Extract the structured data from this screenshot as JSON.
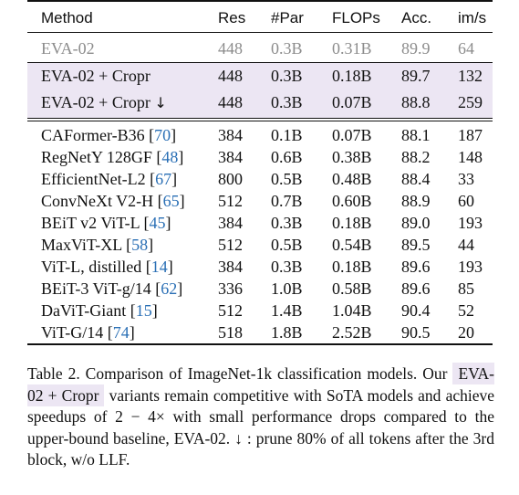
{
  "table": {
    "headers": {
      "method": "Method",
      "res": "Res",
      "par": "#Par",
      "flops": "FLOPs",
      "acc": "Acc.",
      "ims": "im/s"
    },
    "baseline": {
      "method": "EVA-02",
      "res": "448",
      "par": "0.3B",
      "flops": "0.31B",
      "acc": "89.9",
      "ims": "64"
    },
    "ours": [
      {
        "method": "EVA-02 + Cropr",
        "arrow": "",
        "res": "448",
        "par": "0.3B",
        "flops": "0.18B",
        "acc": "89.7",
        "ims": "132"
      },
      {
        "method": "EVA-02 + Cropr",
        "arrow": "↓",
        "res": "448",
        "par": "0.3B",
        "flops": "0.07B",
        "acc": "88.8",
        "ims": "259"
      }
    ],
    "others": [
      {
        "method": "CAFormer-B36",
        "ref": "70",
        "res": "384",
        "par": "0.1B",
        "flops": "0.07B",
        "acc": "88.1",
        "ims": "187"
      },
      {
        "method": "RegNetY 128GF",
        "ref": "48",
        "res": "384",
        "par": "0.6B",
        "flops": "0.38B",
        "acc": "88.2",
        "ims": "148"
      },
      {
        "method": "EfficientNet-L2",
        "ref": "67",
        "res": "800",
        "par": "0.5B",
        "flops": "0.48B",
        "acc": "88.4",
        "ims": "33"
      },
      {
        "method": "ConvNeXt V2-H",
        "ref": "65",
        "res": "512",
        "par": "0.7B",
        "flops": "0.60B",
        "acc": "88.9",
        "ims": "60"
      },
      {
        "method": "BEiT v2 ViT-L",
        "ref": "45",
        "res": "384",
        "par": "0.3B",
        "flops": "0.18B",
        "acc": "89.0",
        "ims": "193"
      },
      {
        "method": "MaxViT-XL",
        "ref": "58",
        "res": "512",
        "par": "0.5B",
        "flops": "0.54B",
        "acc": "89.5",
        "ims": "44"
      },
      {
        "method": "ViT-L, distilled",
        "ref": "14",
        "res": "384",
        "par": "0.3B",
        "flops": "0.18B",
        "acc": "89.6",
        "ims": "193"
      },
      {
        "method": "BEiT-3 ViT-g/14",
        "ref": "62",
        "res": "336",
        "par": "1.0B",
        "flops": "0.58B",
        "acc": "89.6",
        "ims": "85"
      },
      {
        "method": "DaViT-Giant",
        "ref": "15",
        "res": "512",
        "par": "1.4B",
        "flops": "1.04B",
        "acc": "90.4",
        "ims": "52"
      },
      {
        "method": "ViT-G/14",
        "ref": "74",
        "res": "518",
        "par": "1.8B",
        "flops": "2.52B",
        "acc": "90.5",
        "ims": "20"
      }
    ]
  },
  "caption": {
    "lead": "Table 2. Comparison of ImageNet-1k classification models. Our",
    "badge": "EVA-02 + Cropr",
    "rest": "variants remain competitive with SoTA models and achieve speedups of 2 − 4× with small performance drops compared to the upper-bound baseline, EVA-02. ↓ : prune 80% of all tokens after the 3rd block, w/o LLF."
  },
  "colors": {
    "highlight": "#ece6f3",
    "reference_link": "#2a6fb5",
    "baseline_text": "#8c8c8c"
  }
}
